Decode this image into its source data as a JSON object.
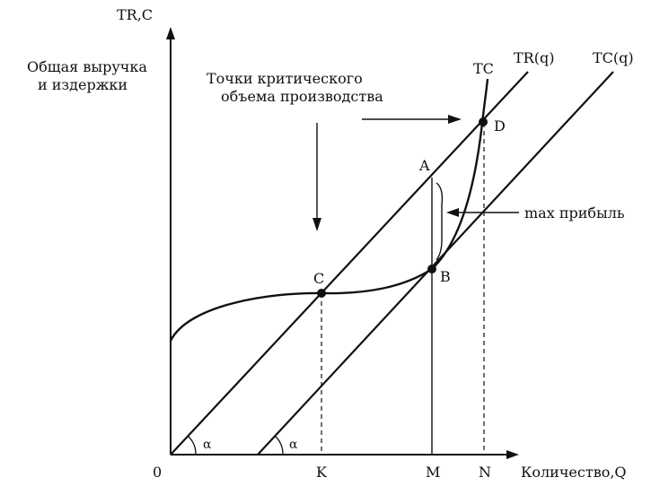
{
  "axes": {
    "y_label": "TR,C",
    "y_caption_line1": "Общая выручка",
    "y_caption_line2": "и издержки",
    "origin_label": "0",
    "x_label": "Количество,Q"
  },
  "curves": {
    "tc_curve_label": "TC",
    "tr_line_label": "TR(q)",
    "tc_line_label": "TC(q)"
  },
  "annotations": {
    "critical_line1": "Точки критического",
    "critical_line2": "объема производства",
    "max_profit": "max прибыль"
  },
  "points": {
    "a": "A",
    "b": "B",
    "c": "C",
    "d": "D"
  },
  "ticks": {
    "k": "K",
    "m": "M",
    "n": "N"
  },
  "angles": {
    "alpha1": "α",
    "alpha2": "α"
  }
}
